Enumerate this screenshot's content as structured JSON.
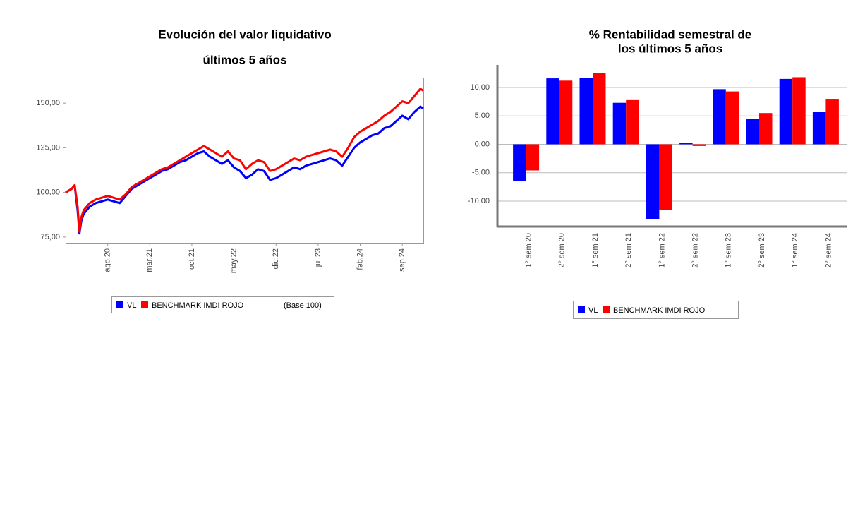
{
  "chart_data": [
    {
      "type": "line",
      "title": [
        "Evolución del valor liquidativo",
        "últimos 5 años"
      ],
      "x": [
        0,
        0.5,
        1,
        1.5,
        2,
        2.3,
        2.6,
        3,
        4,
        5,
        6,
        7,
        8,
        9,
        10,
        11,
        12,
        13,
        14,
        15,
        16,
        17,
        18,
        19,
        20,
        21,
        22,
        23,
        24,
        25,
        26,
        27,
        28,
        29,
        30,
        31,
        32,
        33,
        34,
        35,
        36,
        37,
        38,
        39,
        40,
        41,
        42,
        43,
        44,
        45,
        46,
        47,
        48,
        49,
        50,
        51,
        52,
        53,
        54,
        55,
        56,
        57,
        58,
        59,
        59.5
      ],
      "series": [
        {
          "name": "VL",
          "color": "#0000ff",
          "values": [
            100,
            101,
            102,
            104,
            90,
            77,
            84,
            88,
            92,
            94,
            95,
            96,
            95,
            94,
            98,
            102,
            104,
            106,
            108,
            110,
            112,
            113,
            115,
            117,
            118,
            120,
            122,
            123,
            120,
            118,
            116,
            118,
            114,
            112,
            108,
            110,
            113,
            112,
            107,
            108,
            110,
            112,
            114,
            113,
            115,
            116,
            117,
            118,
            119,
            118,
            115,
            120,
            125,
            128,
            130,
            132,
            133,
            136,
            137,
            140,
            143,
            141,
            145,
            148,
            147
          ]
        },
        {
          "name": "BENCHMARK IMDI ROJO",
          "color": "#ff0000",
          "values": [
            100,
            101,
            102,
            104,
            92,
            78,
            86,
            90,
            94,
            96,
            97,
            98,
            97,
            96,
            99,
            103,
            105,
            107,
            109,
            111,
            113,
            114,
            116,
            118,
            120,
            122,
            124,
            126,
            124,
            122,
            120,
            123,
            119,
            118,
            113,
            116,
            118,
            117,
            112,
            113,
            115,
            117,
            119,
            118,
            120,
            121,
            122,
            123,
            124,
            123,
            120,
            125,
            131,
            134,
            136,
            138,
            140,
            143,
            145,
            148,
            151,
            150,
            154,
            158,
            157
          ]
        }
      ],
      "legend_note": "(Base 100)",
      "xlim": [
        0,
        59.5
      ],
      "xticks": [
        {
          "value": 7,
          "label": "ago.20"
        },
        {
          "value": 14,
          "label": "mar.21"
        },
        {
          "value": 21,
          "label": "oct.21"
        },
        {
          "value": 28,
          "label": "may.22"
        },
        {
          "value": 35,
          "label": "dic.22"
        },
        {
          "value": 42,
          "label": "jul.23"
        },
        {
          "value": 49,
          "label": "feb.24"
        },
        {
          "value": 56,
          "label": "sep.24"
        }
      ],
      "ylim": [
        71.4,
        164.3
      ],
      "yticks": [
        {
          "value": 75,
          "label": "75,00"
        },
        {
          "value": 100,
          "label": "100,00"
        },
        {
          "value": 125,
          "label": "125,00"
        },
        {
          "value": 150,
          "label": "150,00"
        }
      ]
    },
    {
      "type": "bar",
      "title": [
        "% Rentabilidad semestral de",
        "los últimos 5 años"
      ],
      "categories": [
        "1° sem  20",
        "2° sem  20",
        "1° sem  21",
        "2° sem  21",
        "1° sem  22",
        "2° sem  22",
        "1° sem  23",
        "2° sem  23",
        "1° sem  24",
        "2° sem  24"
      ],
      "series": [
        {
          "name": "VL",
          "color": "#0000ff",
          "values": [
            -6.4,
            11.6,
            11.7,
            7.3,
            -13.2,
            0.3,
            9.7,
            4.5,
            11.5,
            5.7
          ]
        },
        {
          "name": "BENCHMARK IMDI ROJO",
          "color": "#ff0000",
          "values": [
            -4.6,
            11.2,
            12.5,
            7.9,
            -11.5,
            -0.3,
            9.3,
            5.5,
            11.8,
            8.0
          ]
        }
      ],
      "ylim": [
        -14.35,
        13.97
      ],
      "yticks": [
        {
          "value": -10,
          "label": "-10,00"
        },
        {
          "value": -5,
          "label": "-5,00"
        },
        {
          "value": 0,
          "label": "0,00"
        },
        {
          "value": 5,
          "label": "5,00"
        },
        {
          "value": 10,
          "label": "10,00"
        }
      ],
      "grid": true
    }
  ]
}
